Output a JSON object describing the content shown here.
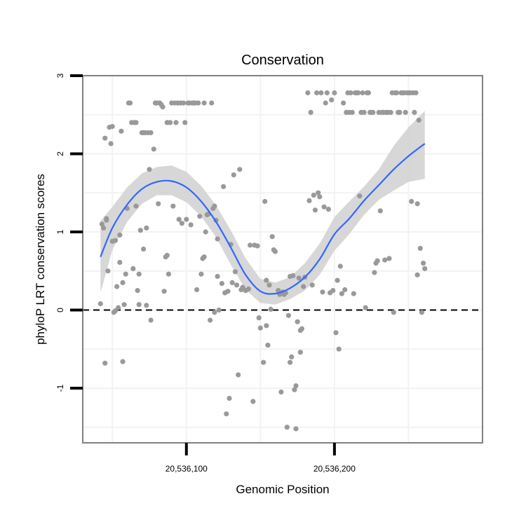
{
  "chart_data": {
    "type": "scatter",
    "title": "Conservation",
    "xlabel": "Genomic Position",
    "ylabel": "phyloP LRT conservation scores",
    "xlim": [
      20536030,
      20536300
    ],
    "ylim": [
      -1.7,
      3.0
    ],
    "x_ticks": [
      {
        "value": 20536100,
        "label": "20,536,100"
      },
      {
        "value": 20536200,
        "label": "20,536,200"
      }
    ],
    "y_ticks": [
      {
        "value": -1,
        "label": "-1"
      },
      {
        "value": 0,
        "label": "0"
      },
      {
        "value": 1,
        "label": "1"
      },
      {
        "value": 2,
        "label": "2"
      },
      {
        "value": 3,
        "label": "3"
      }
    ],
    "reference_line": {
      "y": 0,
      "style": "dashed"
    },
    "grid": true,
    "colors": {
      "points": "#999999",
      "smooth_line": "#3366ff",
      "ribbon": "#d3d3d3",
      "panel_border": "#808080",
      "grid": "#f2f2f2"
    },
    "points": [
      [
        20536042,
        0.08
      ],
      [
        20536043,
        1.1
      ],
      [
        20536044,
        1.05
      ],
      [
        20536045,
        2.2
      ],
      [
        20536045,
        -0.68
      ],
      [
        20536046,
        1.15
      ],
      [
        20536046,
        1.17
      ],
      [
        20536047,
        0.5
      ],
      [
        20536048,
        2.34
      ],
      [
        20536049,
        2.13
      ],
      [
        20536050,
        2.35
      ],
      [
        20536050,
        0.88
      ],
      [
        20536051,
        -0.03
      ],
      [
        20536052,
        0.89
      ],
      [
        20536052,
        -0.01
      ],
      [
        20536053,
        0.3
      ],
      [
        20536054,
        0.03
      ],
      [
        20536055,
        0.61
      ],
      [
        20536055,
        0.96
      ],
      [
        20536056,
        2.29
      ],
      [
        20536057,
        0.35
      ],
      [
        20536057,
        -0.66
      ],
      [
        20536058,
        0.07
      ],
      [
        20536059,
        0.46
      ],
      [
        20536060,
        1.3
      ],
      [
        20536061,
        2.65
      ],
      [
        20536062,
        2.65
      ],
      [
        20536063,
        2.4
      ],
      [
        20536064,
        0.53
      ],
      [
        20536065,
        2.4
      ],
      [
        20536066,
        2.4
      ],
      [
        20536066,
        1.33
      ],
      [
        20536067,
        0.25
      ],
      [
        20536068,
        0.46
      ],
      [
        20536068,
        0.07
      ],
      [
        20536069,
        1.02
      ],
      [
        20536070,
        2.27
      ],
      [
        20536071,
        2.27
      ],
      [
        20536071,
        0.78
      ],
      [
        20536072,
        2.27
      ],
      [
        20536073,
        1.05
      ],
      [
        20536073,
        0.06
      ],
      [
        20536074,
        2.27
      ],
      [
        20536075,
        1.8
      ],
      [
        20536076,
        2.27
      ],
      [
        20536076,
        -0.13
      ],
      [
        20536078,
        2.06
      ],
      [
        20536079,
        2.65
      ],
      [
        20536080,
        2.65
      ],
      [
        20536081,
        1.36
      ],
      [
        20536082,
        2.65
      ],
      [
        20536083,
        2.63
      ],
      [
        20536084,
        2.6
      ],
      [
        20536085,
        0.24
      ],
      [
        20536086,
        0.68
      ],
      [
        20536087,
        0.7
      ],
      [
        20536087,
        2.4
      ],
      [
        20536088,
        0.46
      ],
      [
        20536089,
        2.4
      ],
      [
        20536090,
        2.65
      ],
      [
        20536091,
        1.33
      ],
      [
        20536092,
        2.65
      ],
      [
        20536093,
        2.4
      ],
      [
        20536094,
        2.65
      ],
      [
        20536095,
        1.16
      ],
      [
        20536096,
        2.65
      ],
      [
        20536097,
        1.11
      ],
      [
        20536098,
        2.65
      ],
      [
        20536099,
        2.4
      ],
      [
        20536100,
        1.16
      ],
      [
        20536101,
        2.65
      ],
      [
        20536102,
        2.65
      ],
      [
        20536103,
        1.09
      ],
      [
        20536104,
        2.65
      ],
      [
        20536105,
        2.65
      ],
      [
        20536106,
        2.65
      ],
      [
        20536107,
        0.26
      ],
      [
        20536108,
        2.65
      ],
      [
        20536109,
        1.2
      ],
      [
        20536110,
        0.46
      ],
      [
        20536111,
        0.66
      ],
      [
        20536112,
        0.68
      ],
      [
        20536112,
        2.65
      ],
      [
        20536113,
        1.0
      ],
      [
        20536114,
        1.22
      ],
      [
        20536115,
        1.23
      ],
      [
        20536116,
        -0.13
      ],
      [
        20536117,
        2.65
      ],
      [
        20536118,
        1.3
      ],
      [
        20536119,
        1.33
      ],
      [
        20536119,
        -0.03
      ],
      [
        20536120,
        1.15
      ],
      [
        20536121,
        0.43
      ],
      [
        20536121,
        0.91
      ],
      [
        20536122,
        0.0
      ],
      [
        20536124,
        0.34
      ],
      [
        20536125,
        1.58
      ],
      [
        20536126,
        0.22
      ],
      [
        20536127,
        -1.33
      ],
      [
        20536128,
        0.24
      ],
      [
        20536129,
        -1.13
      ],
      [
        20536130,
        0.84
      ],
      [
        20536131,
        0.35
      ],
      [
        20536132,
        1.73
      ],
      [
        20536133,
        0.49
      ],
      [
        20536134,
        0.32
      ],
      [
        20536135,
        -0.83
      ],
      [
        20536136,
        1.8
      ],
      [
        20536137,
        0.26
      ],
      [
        20536138,
        0.29
      ],
      [
        20536140,
        0.25
      ],
      [
        20536142,
        0.27
      ],
      [
        20536143,
        0.83
      ],
      [
        20536145,
        -1.17
      ],
      [
        20536146,
        0.83
      ],
      [
        20536148,
        0.82
      ],
      [
        20536149,
        -0.1
      ],
      [
        20536150,
        -0.23
      ],
      [
        20536152,
        -0.67
      ],
      [
        20536153,
        1.39
      ],
      [
        20536154,
        -0.2
      ],
      [
        20536154,
        0.38
      ],
      [
        20536155,
        -0.45
      ],
      [
        20536156,
        0.32
      ],
      [
        20536157,
        0.01
      ],
      [
        20536158,
        0.94
      ],
      [
        20536159,
        0.77
      ],
      [
        20536160,
        0.75
      ],
      [
        20536162,
        0.25
      ],
      [
        20536163,
        0.2
      ],
      [
        20536164,
        -1.05
      ],
      [
        20536165,
        0.23
      ],
      [
        20536166,
        0.2
      ],
      [
        20536167,
        0.22
      ],
      [
        20536168,
        -1.5
      ],
      [
        20536169,
        -0.07
      ],
      [
        20536170,
        0.43
      ],
      [
        20536170,
        -0.67
      ],
      [
        20536171,
        -0.6
      ],
      [
        20536172,
        0.44
      ],
      [
        20536173,
        -1.02
      ],
      [
        20536174,
        -0.97
      ],
      [
        20536174,
        -1.52
      ],
      [
        20536175,
        -0.15
      ],
      [
        20536176,
        0.41
      ],
      [
        20536177,
        -0.26
      ],
      [
        20536177,
        -0.54
      ],
      [
        20536178,
        -0.24
      ],
      [
        20536179,
        0.3
      ],
      [
        20536180,
        0.42
      ],
      [
        20536182,
        2.78
      ],
      [
        20536183,
        1.4
      ],
      [
        20536184,
        2.53
      ],
      [
        20536185,
        0.32
      ],
      [
        20536186,
        1.47
      ],
      [
        20536187,
        1.28
      ],
      [
        20536188,
        2.78
      ],
      [
        20536189,
        1.5
      ],
      [
        20536190,
        1.45
      ],
      [
        20536191,
        2.78
      ],
      [
        20536192,
        0.23
      ],
      [
        20536193,
        1.32
      ],
      [
        20536194,
        2.65
      ],
      [
        20536195,
        2.78
      ],
      [
        20536196,
        1.29
      ],
      [
        20536197,
        0.22
      ],
      [
        20536198,
        2.69
      ],
      [
        20536199,
        0.25
      ],
      [
        20536200,
        2.78
      ],
      [
        20536201,
        -0.29
      ],
      [
        20536202,
        0.38
      ],
      [
        20536203,
        -0.5
      ],
      [
        20536204,
        0.56
      ],
      [
        20536205,
        0.21
      ],
      [
        20536206,
        2.65
      ],
      [
        20536207,
        0.26
      ],
      [
        20536208,
        2.53
      ],
      [
        20536209,
        2.78
      ],
      [
        20536210,
        2.53
      ],
      [
        20536211,
        2.78
      ],
      [
        20536212,
        2.53
      ],
      [
        20536213,
        0.21
      ],
      [
        20536214,
        2.78
      ],
      [
        20536215,
        2.78
      ],
      [
        20536216,
        2.78
      ],
      [
        20536217,
        1.46
      ],
      [
        20536218,
        2.53
      ],
      [
        20536219,
        2.78
      ],
      [
        20536220,
        2.53
      ],
      [
        20536221,
        0.03
      ],
      [
        20536222,
        2.78
      ],
      [
        20536223,
        2.78
      ],
      [
        20536224,
        2.53
      ],
      [
        20536225,
        2.53
      ],
      [
        20536226,
        2.53
      ],
      [
        20536227,
        0.48
      ],
      [
        20536228,
        0.6
      ],
      [
        20536229,
        0.63
      ],
      [
        20536230,
        2.53
      ],
      [
        20536231,
        1.27
      ],
      [
        20536232,
        2.53
      ],
      [
        20536233,
        2.53
      ],
      [
        20536234,
        0.64
      ],
      [
        20536235,
        2.53
      ],
      [
        20536236,
        2.53
      ],
      [
        20536237,
        0.66
      ],
      [
        20536238,
        2.53
      ],
      [
        20536239,
        2.78
      ],
      [
        20536240,
        -0.03
      ],
      [
        20536241,
        2.78
      ],
      [
        20536242,
        2.78
      ],
      [
        20536243,
        2.53
      ],
      [
        20536244,
        2.53
      ],
      [
        20536245,
        2.78
      ],
      [
        20536246,
        2.78
      ],
      [
        20536247,
        2.78
      ],
      [
        20536248,
        2.53
      ],
      [
        20536249,
        2.78
      ],
      [
        20536250,
        2.78
      ],
      [
        20536251,
        2.78
      ],
      [
        20536252,
        1.39
      ],
      [
        20536253,
        2.78
      ],
      [
        20536254,
        2.53
      ],
      [
        20536255,
        2.78
      ],
      [
        20536256,
        1.36
      ],
      [
        20536256,
        0.45
      ],
      [
        20536257,
        2.43
      ],
      [
        20536258,
        0.79
      ],
      [
        20536259,
        -0.03
      ],
      [
        20536260,
        0.6
      ],
      [
        20536261,
        0.53
      ]
    ],
    "smooth": {
      "x": [
        20536042,
        20536050,
        20536060,
        20536070,
        20536080,
        20536090,
        20536100,
        20536110,
        20536120,
        20536130,
        20536140,
        20536150,
        20536160,
        20536170,
        20536180,
        20536190,
        20536200,
        20536210,
        20536220,
        20536230,
        20536240,
        20536250,
        20536261
      ],
      "y": [
        0.68,
        1.05,
        1.35,
        1.55,
        1.64,
        1.65,
        1.57,
        1.39,
        1.13,
        0.8,
        0.45,
        0.24,
        0.21,
        0.28,
        0.42,
        0.65,
        0.97,
        1.17,
        1.4,
        1.6,
        1.8,
        1.97,
        2.13
      ],
      "lower": [
        0.22,
        0.77,
        1.13,
        1.36,
        1.47,
        1.47,
        1.38,
        1.2,
        0.93,
        0.58,
        0.26,
        0.09,
        0.07,
        0.14,
        0.25,
        0.45,
        0.76,
        0.97,
        1.22,
        1.41,
        1.53,
        1.64,
        1.68
      ],
      "upper": [
        1.14,
        1.32,
        1.57,
        1.75,
        1.83,
        1.85,
        1.77,
        1.59,
        1.34,
        1.02,
        0.66,
        0.4,
        0.35,
        0.42,
        0.6,
        0.85,
        1.19,
        1.39,
        1.58,
        1.8,
        2.1,
        2.34,
        2.55
      ]
    }
  }
}
